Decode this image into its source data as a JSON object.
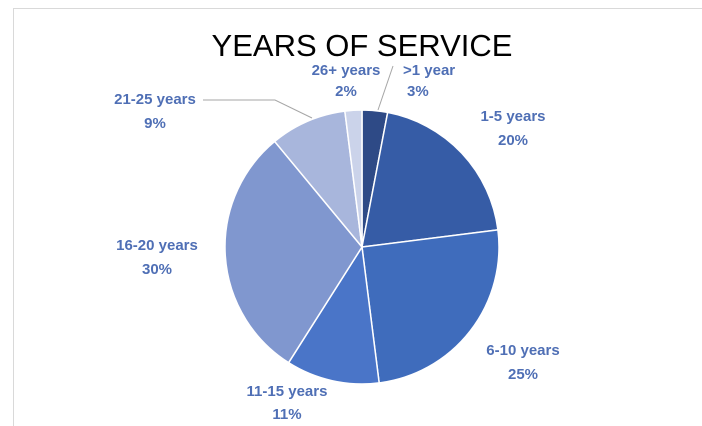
{
  "chart_data": {
    "type": "pie",
    "title": "YEARS OF SERVICE",
    "slices": [
      {
        "label": ">1 year",
        "pct": "3%",
        "value": 3,
        "color": "#2e4a86"
      },
      {
        "label": "1-5 years",
        "pct": "20%",
        "value": 20,
        "color": "#365ca6"
      },
      {
        "label": "6-10 years",
        "pct": "25%",
        "value": 25,
        "color": "#3f6cbc"
      },
      {
        "label": "11-15 years",
        "pct": "11%",
        "value": 11,
        "color": "#4a75c8"
      },
      {
        "label": "16-20 years",
        "pct": "30%",
        "value": 30,
        "color": "#8097cf"
      },
      {
        "label": "21-25 years",
        "pct": "9%",
        "value": 9,
        "color": "#a8b6dc"
      },
      {
        "label": "26+ years",
        "pct": "2%",
        "value": 2,
        "color": "#cbd3ea"
      }
    ],
    "legend": "none",
    "label_color": "#4f6fb5"
  }
}
